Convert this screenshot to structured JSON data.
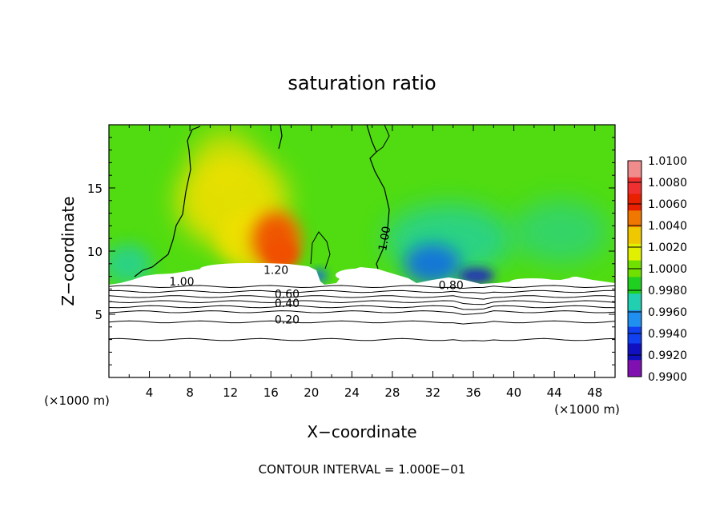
{
  "chart_data": {
    "type": "heatmap",
    "title": "saturation ratio",
    "xlabel": "X−coordinate",
    "ylabel": "Z−coordinate",
    "x_unit_left": "(×1000 m)",
    "x_unit_right": "(×1000 m)",
    "xlim": [
      0,
      50
    ],
    "ylim": [
      0,
      20
    ],
    "xticks": [
      4,
      8,
      12,
      16,
      20,
      24,
      28,
      32,
      36,
      40,
      44,
      48
    ],
    "xtick_labels": [
      "4",
      "8",
      "12",
      "16",
      "20",
      "24",
      "28",
      "32",
      "36",
      "40",
      "44",
      "48"
    ],
    "yticks": [
      5,
      10,
      15
    ],
    "ytick_labels": [
      "5",
      "10",
      "15"
    ],
    "footer": "CONTOUR INTERVAL = 1.000E−01",
    "colorbar": {
      "range": [
        0.99,
        1.01
      ],
      "labels": [
        "1.0100",
        "1.0080",
        "1.0060",
        "1.0040",
        "1.0020",
        "1.0000",
        "0.9980",
        "0.9960",
        "0.9940",
        "0.9920",
        "0.9900"
      ],
      "colors": [
        "#f08c8c",
        "#f03030",
        "#e82000",
        "#f07800",
        "#f0c800",
        "#e0f000",
        "#70e000",
        "#20d020",
        "#20d0b0",
        "#2090f0",
        "#1040f0",
        "#1010c0",
        "#8010b0"
      ]
    },
    "contour_labels": [
      {
        "text": "1.20",
        "x": 16.5,
        "y": 8.5
      },
      {
        "text": "1.00",
        "x": 7.2,
        "y": 7.6
      },
      {
        "text": "0.60",
        "x": 17.6,
        "y": 6.6
      },
      {
        "text": "0.40",
        "x": 17.6,
        "y": 5.9
      },
      {
        "text": "0.20",
        "x": 17.6,
        "y": 4.6
      },
      {
        "text": "0.80",
        "x": 33.8,
        "y": 7.3
      },
      {
        "text": "1.00",
        "x": 27.2,
        "y": 11.0
      }
    ],
    "fill_colors": {
      "background": "#50dc10",
      "warm": "#f0e000",
      "hot": "#f05000",
      "cool": "#20d0a0",
      "cold": "#1060f0",
      "coldest": "#2020c0",
      "cloud": "#ffffff"
    }
  }
}
